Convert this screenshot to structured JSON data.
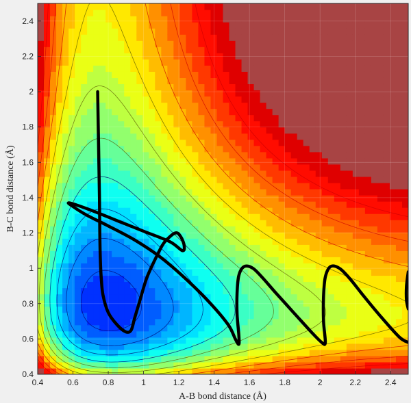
{
  "chart_data": {
    "type": "contour",
    "title": "",
    "xlabel": "A-B bond distance (Å)",
    "ylabel": "B-C bond distance (Å)",
    "xlim": [
      0.4,
      2.5
    ],
    "ylim": [
      0.4,
      2.5
    ],
    "xticks": [
      "0.4",
      "0.6",
      "0.8",
      "1",
      "1.2",
      "1.4",
      "1.6",
      "1.8",
      "2",
      "2.2",
      "2.4"
    ],
    "yticks": [
      "0.4",
      "0.6",
      "0.8",
      "1",
      "1.2",
      "1.4",
      "1.6",
      "1.8",
      "2",
      "2.2",
      "2.4"
    ],
    "grid": true,
    "colormap": "jet",
    "contour_line_colors": {
      "low": "#00006e",
      "mid": "#5a5a00",
      "high": "#cc0000"
    },
    "trajectory_color": "#000000",
    "series": [
      {
        "x": [
          0.74,
          0.745,
          0.75,
          0.752,
          0.755,
          0.76,
          0.77,
          0.8,
          0.85,
          0.9,
          0.93,
          0.95,
          0.98,
          1.02,
          1.08,
          1.12,
          1.18,
          1.21,
          1.23,
          1.22,
          1.15,
          1.0,
          0.85,
          0.7,
          0.58,
          0.6,
          0.68,
          0.8,
          0.95,
          1.1,
          1.25,
          1.38,
          1.48,
          1.52,
          1.54,
          1.54,
          1.53,
          1.53,
          1.54,
          1.57,
          1.62,
          1.68,
          1.75,
          1.85,
          1.95,
          2.01,
          2.03,
          2.02,
          2.02,
          2.03,
          2.06,
          2.11,
          2.17,
          2.25,
          2.35,
          2.45,
          2.5
        ],
        "y": [
          2.0,
          1.7,
          1.4,
          1.2,
          1.05,
          0.95,
          0.85,
          0.75,
          0.68,
          0.64,
          0.65,
          0.72,
          0.82,
          0.95,
          1.08,
          1.15,
          1.2,
          1.18,
          1.13,
          1.1,
          1.15,
          1.21,
          1.27,
          1.33,
          1.37,
          1.35,
          1.3,
          1.24,
          1.16,
          1.06,
          0.93,
          0.8,
          0.68,
          0.6,
          0.57,
          0.62,
          0.74,
          0.86,
          0.96,
          1.01,
          1.0,
          0.94,
          0.86,
          0.75,
          0.64,
          0.58,
          0.58,
          0.7,
          0.84,
          0.95,
          1.01,
          1.0,
          0.94,
          0.84,
          0.72,
          0.61,
          0.58
        ]
      },
      {
        "x": [
          2.5,
          2.49,
          2.49,
          2.5
        ],
        "y": [
          0.98,
          0.9,
          0.82,
          0.77
        ]
      }
    ]
  }
}
